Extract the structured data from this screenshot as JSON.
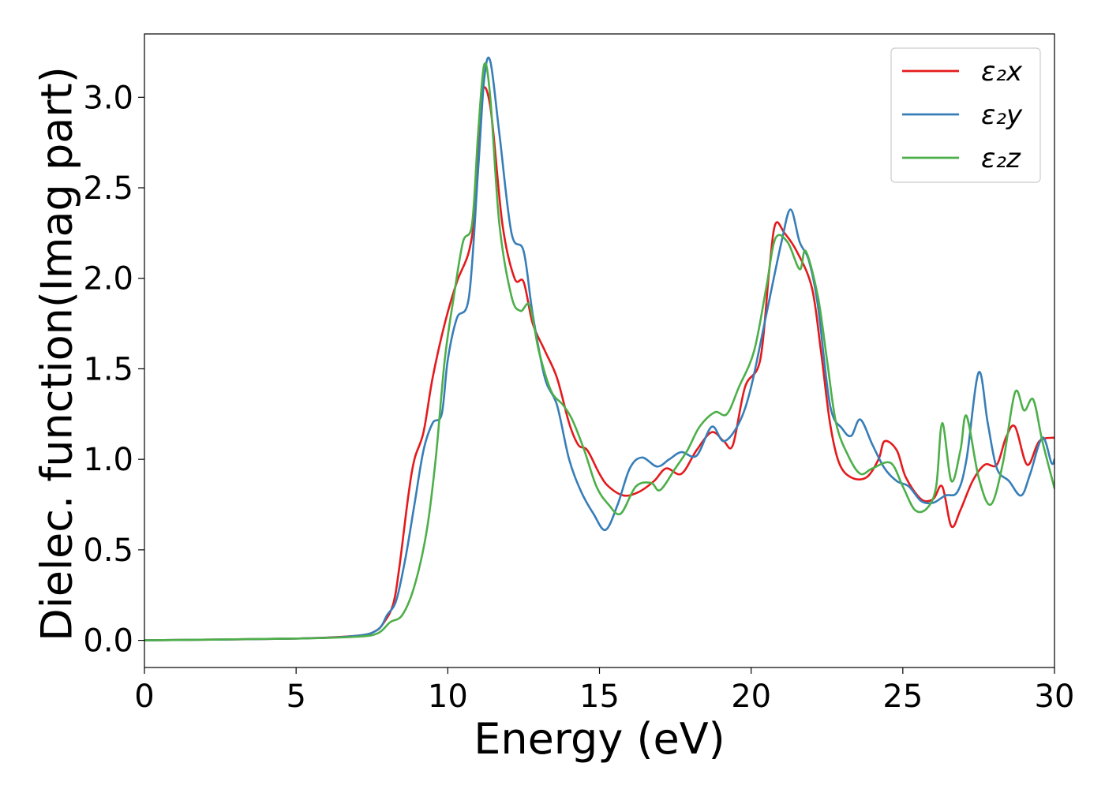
{
  "chart_data": {
    "type": "line",
    "xlabel": "Energy (eV)",
    "ylabel": "Dielec. function(Imag part)",
    "xlim": [
      0,
      30
    ],
    "ylim": [
      -0.15,
      3.35
    ],
    "xticks": [
      0,
      5,
      10,
      15,
      20,
      25,
      30
    ],
    "xtick_labels": [
      "0",
      "5",
      "10",
      "15",
      "20",
      "25",
      "30"
    ],
    "yticks": [
      0.0,
      0.5,
      1.0,
      1.5,
      2.0,
      2.5,
      3.0
    ],
    "ytick_labels": [
      "0.0",
      "0.5",
      "1.0",
      "1.5",
      "2.0",
      "2.5",
      "3.0"
    ],
    "grid": false,
    "legend_position": "top-right",
    "series": [
      {
        "name": "ε₂x",
        "color": "#e41a1c",
        "points": [
          [
            0,
            0.0
          ],
          [
            5,
            0.01
          ],
          [
            7,
            0.025
          ],
          [
            7.6,
            0.05
          ],
          [
            7.9,
            0.1
          ],
          [
            8.2,
            0.2
          ],
          [
            8.4,
            0.4
          ],
          [
            8.7,
            0.8
          ],
          [
            8.9,
            1.0
          ],
          [
            9.2,
            1.15
          ],
          [
            9.5,
            1.45
          ],
          [
            9.9,
            1.75
          ],
          [
            10.3,
            1.98
          ],
          [
            10.7,
            2.15
          ],
          [
            10.9,
            2.4
          ],
          [
            11.1,
            3.0
          ],
          [
            11.4,
            2.95
          ],
          [
            11.8,
            2.3
          ],
          [
            12.2,
            2.0
          ],
          [
            12.5,
            1.98
          ],
          [
            12.8,
            1.75
          ],
          [
            13.2,
            1.6
          ],
          [
            13.6,
            1.45
          ],
          [
            14.0,
            1.2
          ],
          [
            14.3,
            1.08
          ],
          [
            14.6,
            1.05
          ],
          [
            15.0,
            0.92
          ],
          [
            15.3,
            0.85
          ],
          [
            15.8,
            0.8
          ],
          [
            16.3,
            0.82
          ],
          [
            16.8,
            0.88
          ],
          [
            17.2,
            0.95
          ],
          [
            17.7,
            0.92
          ],
          [
            18.2,
            1.05
          ],
          [
            18.7,
            1.15
          ],
          [
            19.1,
            1.1
          ],
          [
            19.4,
            1.08
          ],
          [
            19.8,
            1.4
          ],
          [
            20.3,
            1.55
          ],
          [
            20.6,
            2.05
          ],
          [
            20.8,
            2.3
          ],
          [
            21.1,
            2.25
          ],
          [
            21.5,
            2.15
          ],
          [
            22.0,
            1.95
          ],
          [
            22.3,
            1.6
          ],
          [
            22.6,
            1.2
          ],
          [
            22.9,
            0.98
          ],
          [
            23.3,
            0.9
          ],
          [
            23.8,
            0.9
          ],
          [
            24.2,
            1.0
          ],
          [
            24.4,
            1.1
          ],
          [
            24.8,
            1.05
          ],
          [
            25.1,
            0.9
          ],
          [
            25.6,
            0.78
          ],
          [
            26.0,
            0.78
          ],
          [
            26.3,
            0.85
          ],
          [
            26.6,
            0.63
          ],
          [
            26.9,
            0.72
          ],
          [
            27.3,
            0.88
          ],
          [
            27.7,
            0.97
          ],
          [
            28.1,
            0.97
          ],
          [
            28.4,
            1.12
          ],
          [
            28.7,
            1.18
          ],
          [
            29.1,
            0.97
          ],
          [
            29.5,
            1.1
          ],
          [
            30,
            1.12
          ]
        ]
      },
      {
        "name": "ε₂y",
        "color": "#377eb8",
        "points": [
          [
            0,
            0.0
          ],
          [
            5,
            0.01
          ],
          [
            7,
            0.025
          ],
          [
            7.7,
            0.06
          ],
          [
            8.0,
            0.14
          ],
          [
            8.3,
            0.22
          ],
          [
            8.6,
            0.45
          ],
          [
            8.9,
            0.75
          ],
          [
            9.2,
            1.05
          ],
          [
            9.5,
            1.2
          ],
          [
            9.8,
            1.25
          ],
          [
            10.0,
            1.55
          ],
          [
            10.3,
            1.78
          ],
          [
            10.7,
            1.9
          ],
          [
            11.0,
            2.6
          ],
          [
            11.2,
            3.1
          ],
          [
            11.4,
            3.2
          ],
          [
            11.7,
            2.8
          ],
          [
            12.1,
            2.25
          ],
          [
            12.5,
            2.15
          ],
          [
            12.8,
            1.8
          ],
          [
            13.2,
            1.45
          ],
          [
            13.6,
            1.3
          ],
          [
            14.0,
            1.0
          ],
          [
            14.4,
            0.82
          ],
          [
            14.8,
            0.7
          ],
          [
            15.2,
            0.61
          ],
          [
            15.6,
            0.75
          ],
          [
            16.0,
            0.95
          ],
          [
            16.4,
            1.01
          ],
          [
            16.9,
            0.96
          ],
          [
            17.3,
            1.0
          ],
          [
            17.7,
            1.04
          ],
          [
            18.2,
            1.02
          ],
          [
            18.7,
            1.18
          ],
          [
            19.1,
            1.1
          ],
          [
            19.6,
            1.2
          ],
          [
            20.0,
            1.4
          ],
          [
            20.5,
            1.8
          ],
          [
            21.0,
            2.2
          ],
          [
            21.3,
            2.38
          ],
          [
            21.6,
            2.2
          ],
          [
            21.9,
            2.1
          ],
          [
            22.2,
            1.85
          ],
          [
            22.6,
            1.3
          ],
          [
            23.0,
            1.17
          ],
          [
            23.3,
            1.13
          ],
          [
            23.6,
            1.22
          ],
          [
            24.0,
            1.08
          ],
          [
            24.4,
            0.95
          ],
          [
            24.8,
            0.88
          ],
          [
            25.2,
            0.85
          ],
          [
            25.6,
            0.77
          ],
          [
            26.0,
            0.76
          ],
          [
            26.4,
            0.8
          ],
          [
            26.8,
            0.82
          ],
          [
            27.1,
            1.0
          ],
          [
            27.5,
            1.48
          ],
          [
            27.8,
            1.2
          ],
          [
            28.1,
            0.95
          ],
          [
            28.5,
            0.88
          ],
          [
            28.9,
            0.8
          ],
          [
            29.2,
            0.92
          ],
          [
            29.6,
            1.12
          ],
          [
            29.9,
            0.98
          ],
          [
            30,
            1.0
          ]
        ]
      },
      {
        "name": "ε₂z",
        "color": "#4daf4a",
        "points": [
          [
            0,
            0.0
          ],
          [
            5,
            0.01
          ],
          [
            7,
            0.02
          ],
          [
            7.7,
            0.04
          ],
          [
            8.1,
            0.1
          ],
          [
            8.5,
            0.14
          ],
          [
            8.9,
            0.3
          ],
          [
            9.3,
            0.6
          ],
          [
            9.6,
            1.0
          ],
          [
            9.9,
            1.55
          ],
          [
            10.2,
            1.9
          ],
          [
            10.5,
            2.2
          ],
          [
            10.8,
            2.3
          ],
          [
            11.0,
            2.8
          ],
          [
            11.2,
            3.18
          ],
          [
            11.4,
            3.0
          ],
          [
            11.7,
            2.3
          ],
          [
            12.1,
            1.9
          ],
          [
            12.4,
            1.82
          ],
          [
            12.7,
            1.85
          ],
          [
            13.0,
            1.6
          ],
          [
            13.4,
            1.38
          ],
          [
            13.8,
            1.3
          ],
          [
            14.1,
            1.22
          ],
          [
            14.5,
            1.05
          ],
          [
            14.9,
            0.85
          ],
          [
            15.3,
            0.75
          ],
          [
            15.7,
            0.7
          ],
          [
            16.2,
            0.85
          ],
          [
            16.7,
            0.87
          ],
          [
            17.0,
            0.83
          ],
          [
            17.5,
            0.95
          ],
          [
            17.9,
            1.05
          ],
          [
            18.3,
            1.18
          ],
          [
            18.8,
            1.26
          ],
          [
            19.2,
            1.25
          ],
          [
            19.6,
            1.4
          ],
          [
            20.1,
            1.6
          ],
          [
            20.5,
            1.95
          ],
          [
            20.8,
            2.22
          ],
          [
            21.2,
            2.2
          ],
          [
            21.6,
            2.05
          ],
          [
            21.8,
            2.15
          ],
          [
            22.2,
            1.9
          ],
          [
            22.5,
            1.55
          ],
          [
            22.8,
            1.2
          ],
          [
            23.2,
            1.02
          ],
          [
            23.6,
            0.92
          ],
          [
            24.0,
            0.95
          ],
          [
            24.6,
            0.98
          ],
          [
            25.0,
            0.85
          ],
          [
            25.4,
            0.72
          ],
          [
            25.8,
            0.73
          ],
          [
            26.1,
            0.85
          ],
          [
            26.3,
            1.2
          ],
          [
            26.6,
            0.88
          ],
          [
            26.9,
            1.05
          ],
          [
            27.1,
            1.24
          ],
          [
            27.5,
            0.9
          ],
          [
            27.9,
            0.75
          ],
          [
            28.3,
            0.98
          ],
          [
            28.7,
            1.37
          ],
          [
            29.0,
            1.27
          ],
          [
            29.3,
            1.33
          ],
          [
            29.6,
            1.1
          ],
          [
            30,
            0.84
          ]
        ]
      }
    ]
  }
}
